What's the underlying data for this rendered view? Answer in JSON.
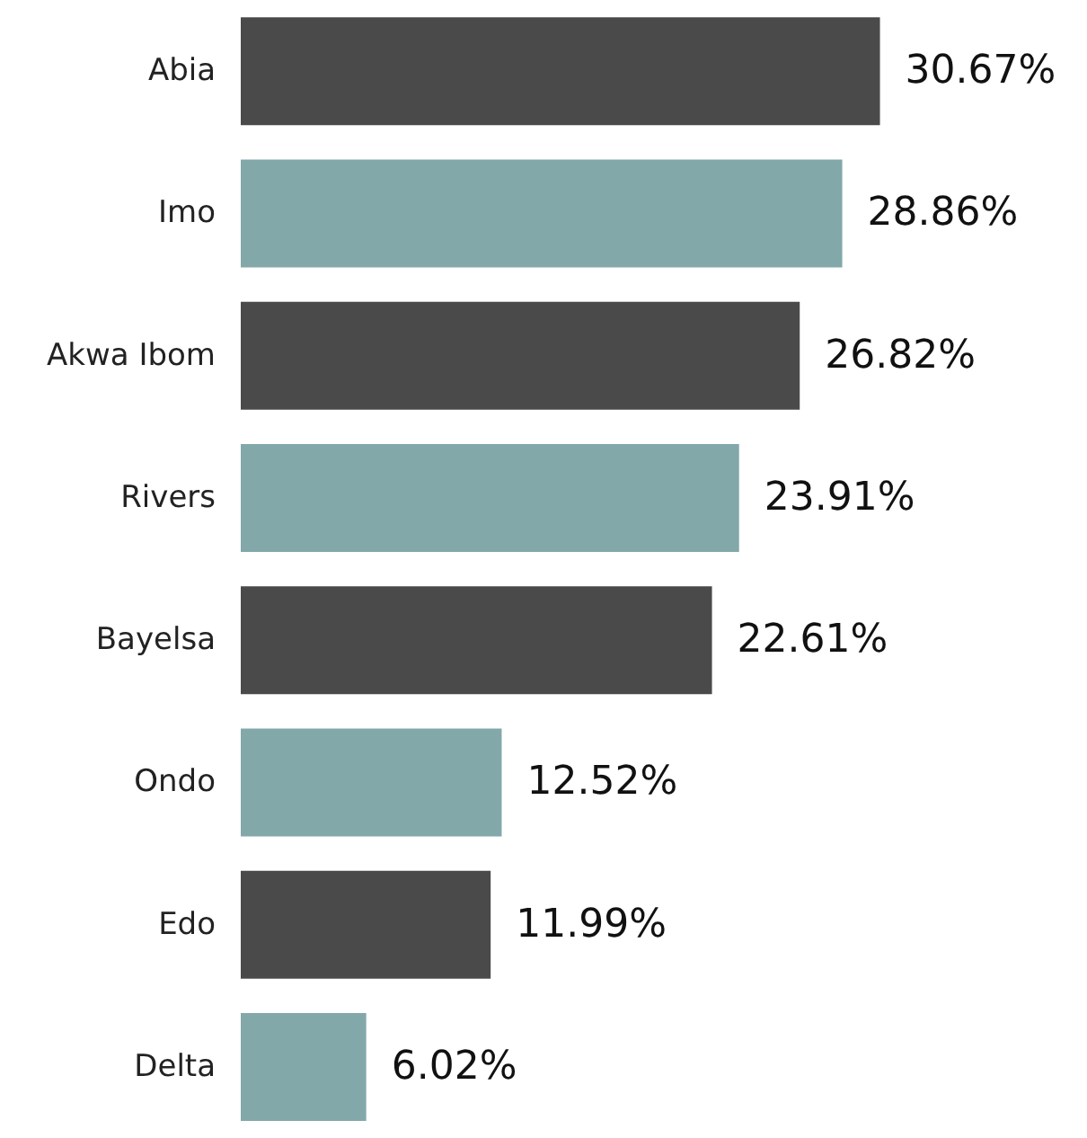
{
  "chart_data": {
    "type": "bar",
    "orientation": "horizontal",
    "categories": [
      "Abia",
      "Imo",
      "Akwa Ibom",
      "Rivers",
      "Bayelsa",
      "Ondo",
      "Edo",
      "Delta"
    ],
    "values": [
      30.67,
      28.86,
      26.82,
      23.91,
      22.61,
      12.52,
      11.99,
      6.02
    ],
    "colors": [
      "#4a4a4a",
      "#82a8aa",
      "#4a4a4a",
      "#82a8aa",
      "#4a4a4a",
      "#82a8aa",
      "#4a4a4a",
      "#82a8aa"
    ],
    "value_labels": [
      "30.67%",
      "28.86%",
      "26.82%",
      "23.91%",
      "22.61%",
      "12.52%",
      "11.99%",
      "6.02%"
    ]
  }
}
